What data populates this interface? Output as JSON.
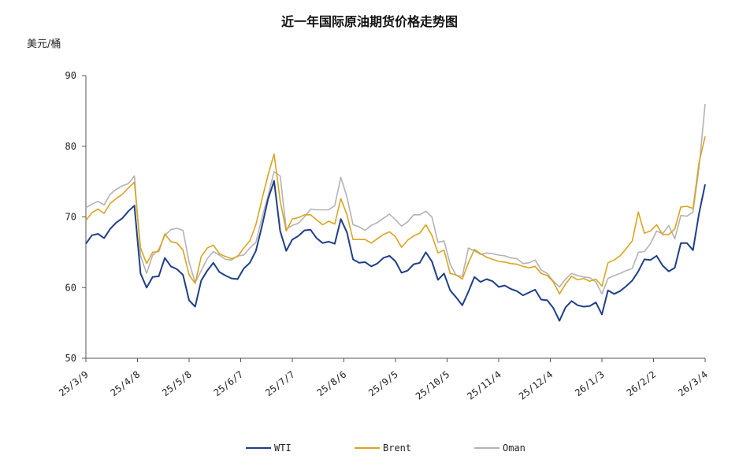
{
  "chart_data": {
    "type": "line",
    "title": "近一年国际原油期货价格走势图",
    "ylabel": "美元/桶",
    "xlabel": "",
    "ylim": [
      50,
      90
    ],
    "yticks": [
      50,
      60,
      70,
      80,
      90
    ],
    "x_tick_labels": [
      "25/3/9",
      "25/4/8",
      "25/5/8",
      "25/6/7",
      "25/7/7",
      "25/8/6",
      "25/9/5",
      "25/10/5",
      "25/11/4",
      "25/12/4",
      "26/1/3",
      "26/2/2",
      "26/3/4"
    ],
    "series": [
      {
        "name": "WTI",
        "color": "#1f3f88",
        "values": [
          66.2,
          67.4,
          67.6,
          67.0,
          68.3,
          69.2,
          69.8,
          70.8,
          71.6,
          62.0,
          60.0,
          61.5,
          61.6,
          64.2,
          63.0,
          62.6,
          61.8,
          58.2,
          57.3,
          61.0,
          62.4,
          63.5,
          62.2,
          61.7,
          61.3,
          61.2,
          62.7,
          63.5,
          65.2,
          68.7,
          72.5,
          75.1,
          68.0,
          65.2,
          66.8,
          67.3,
          68.1,
          68.2,
          67.0,
          66.3,
          66.5,
          66.2,
          69.7,
          67.8,
          64.0,
          63.5,
          63.6,
          63.0,
          63.4,
          64.2,
          64.5,
          63.7,
          62.1,
          62.4,
          63.3,
          63.5,
          65.0,
          63.7,
          61.1,
          62.0,
          59.6,
          58.6,
          57.5,
          59.4,
          61.5,
          60.8,
          61.2,
          60.9,
          60.1,
          60.3,
          59.8,
          59.5,
          58.9,
          59.3,
          59.7,
          58.3,
          58.2,
          57.1,
          55.3,
          57.2,
          58.1,
          57.5,
          57.3,
          57.4,
          57.9,
          56.2,
          59.6,
          59.1,
          59.5,
          60.2,
          61.0,
          62.3,
          64.0,
          63.9,
          64.5,
          63.1,
          62.3,
          62.8,
          66.3,
          66.3,
          65.3,
          70.5,
          74.6
        ]
      },
      {
        "name": "Brent",
        "color": "#d9a520",
        "values": [
          69.5,
          70.6,
          71.1,
          70.5,
          71.9,
          72.6,
          73.2,
          74.1,
          74.9,
          65.6,
          63.4,
          65.0,
          65.1,
          67.6,
          66.5,
          66.3,
          65.3,
          61.8,
          60.6,
          64.4,
          65.6,
          66.0,
          64.8,
          64.4,
          64.1,
          64.4,
          65.6,
          66.6,
          68.9,
          72.5,
          75.9,
          78.9,
          72.3,
          68.0,
          69.7,
          69.9,
          70.3,
          70.3,
          69.6,
          68.9,
          69.4,
          69.0,
          72.6,
          70.3,
          66.8,
          66.8,
          66.8,
          66.3,
          66.9,
          67.5,
          67.9,
          67.2,
          65.7,
          66.7,
          67.3,
          67.7,
          68.9,
          67.4,
          64.9,
          65.3,
          62.0,
          61.8,
          61.2,
          63.5,
          65.4,
          64.8,
          64.3,
          64.0,
          63.7,
          63.6,
          63.4,
          63.3,
          63.0,
          62.8,
          63.0,
          62.0,
          61.7,
          60.8,
          59.1,
          60.5,
          61.6,
          61.1,
          61.3,
          60.9,
          61.2,
          60.2,
          63.5,
          63.9,
          64.5,
          65.5,
          66.6,
          70.7,
          67.7,
          68.0,
          68.9,
          67.5,
          67.5,
          68.3,
          71.4,
          71.5,
          71.2,
          77.7,
          81.4
        ]
      },
      {
        "name": "Oman",
        "color": "#b3b3b3",
        "values": [
          71.3,
          71.8,
          72.2,
          71.7,
          73.2,
          73.9,
          74.4,
          74.7,
          75.8,
          64.5,
          62.0,
          64.6,
          65.4,
          67.4,
          68.2,
          68.4,
          68.1,
          63.6,
          60.7,
          62.4,
          64.1,
          65.1,
          64.6,
          64.0,
          63.9,
          64.5,
          64.6,
          65.6,
          66.4,
          69.9,
          73.0,
          76.4,
          75.8,
          68.3,
          68.8,
          69.1,
          70.0,
          71.1,
          71.0,
          71.0,
          71.0,
          71.6,
          75.6,
          72.8,
          68.9,
          68.6,
          68.1,
          68.8,
          69.2,
          69.8,
          70.4,
          69.6,
          68.7,
          69.3,
          70.3,
          70.3,
          70.8,
          70.0,
          66.4,
          66.6,
          63.3,
          61.7,
          61.6,
          65.6,
          65.2,
          64.7,
          64.9,
          64.8,
          64.6,
          64.5,
          64.2,
          64.1,
          63.4,
          63.5,
          63.9,
          62.5,
          62.0,
          60.9,
          60.1,
          61.2,
          62.0,
          61.7,
          61.5,
          61.4,
          60.8,
          59.1,
          61.3,
          61.7,
          62.0,
          62.4,
          62.7,
          65.0,
          65.1,
          66.2,
          68.0,
          67.6,
          68.8,
          66.9,
          70.2,
          70.1,
          70.7,
          77.0,
          86.0
        ]
      }
    ],
    "legend_position": "bottom"
  }
}
